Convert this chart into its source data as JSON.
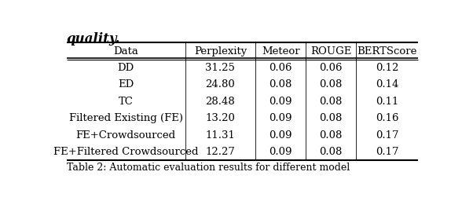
{
  "columns": [
    "Data",
    "Perplexity",
    "Meteor",
    "ROUGE",
    "BERTScore"
  ],
  "rows": [
    [
      "DD",
      "31.25",
      "0.06",
      "0.06",
      "0.12"
    ],
    [
      "ED",
      "24.80",
      "0.08",
      "0.08",
      "0.14"
    ],
    [
      "TC",
      "28.48",
      "0.09",
      "0.08",
      "0.11"
    ],
    [
      "Filtered Existing (FE)",
      "13.20",
      "0.09",
      "0.08",
      "0.16"
    ],
    [
      "FE+Crowdsourced",
      "11.31",
      "0.09",
      "0.08",
      "0.17"
    ],
    [
      "FE+Filtered Crowdsourced",
      "12.27",
      "0.09",
      "0.08",
      "0.17"
    ]
  ],
  "background_color": "#ffffff",
  "text_color": "#000000",
  "font_size": 9.5,
  "title_text": "quality.",
  "title_font_size": 12,
  "footer_text": "Table 2: Automatic evaluation results for different model",
  "footer_font_size": 9
}
